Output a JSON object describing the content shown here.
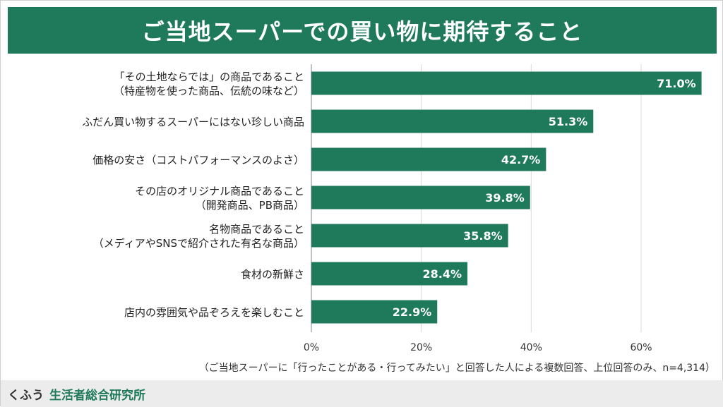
{
  "chart_data": {
    "type": "bar",
    "orientation": "horizontal",
    "title": "ご当地スーパーでの買い物に期待すること",
    "categories": [
      [
        "「その土地ならでは」の商品であること",
        "（特産物を使った商品、伝統の味など）"
      ],
      [
        "ふだん買い物するスーパーにはない珍しい商品"
      ],
      [
        "価格の安さ（コストパフォーマンスのよさ）"
      ],
      [
        "その店のオリジナル商品であること",
        "（開発商品、PB商品）"
      ],
      [
        "名物商品であること",
        "（メディアやSNSで紹介された有名な商品）"
      ],
      [
        "食材の新鮮さ"
      ],
      [
        "店内の雰囲気や品ぞろえを楽しむこと"
      ]
    ],
    "values": [
      71.0,
      51.3,
      42.7,
      39.8,
      35.8,
      28.4,
      22.9
    ],
    "data_labels": [
      "71.0%",
      "51.3%",
      "42.7%",
      "39.8%",
      "35.8%",
      "28.4%",
      "22.9%"
    ],
    "xlim": [
      0,
      75
    ],
    "xticks": [
      0,
      20,
      40,
      60
    ],
    "xtick_labels": [
      "0%",
      "20%",
      "40%",
      "60%"
    ],
    "grid": true,
    "bar_color": "#1f7a5c",
    "note": "（ご当地スーパーに「行ったことがある・行ってみたい」と回答した人による複数回答、上位回答のみ、n=4,314）"
  },
  "footer": {
    "brand": "くふう",
    "org": "生活者総合研究所"
  },
  "colors": {
    "accent": "#1f7a5c"
  }
}
